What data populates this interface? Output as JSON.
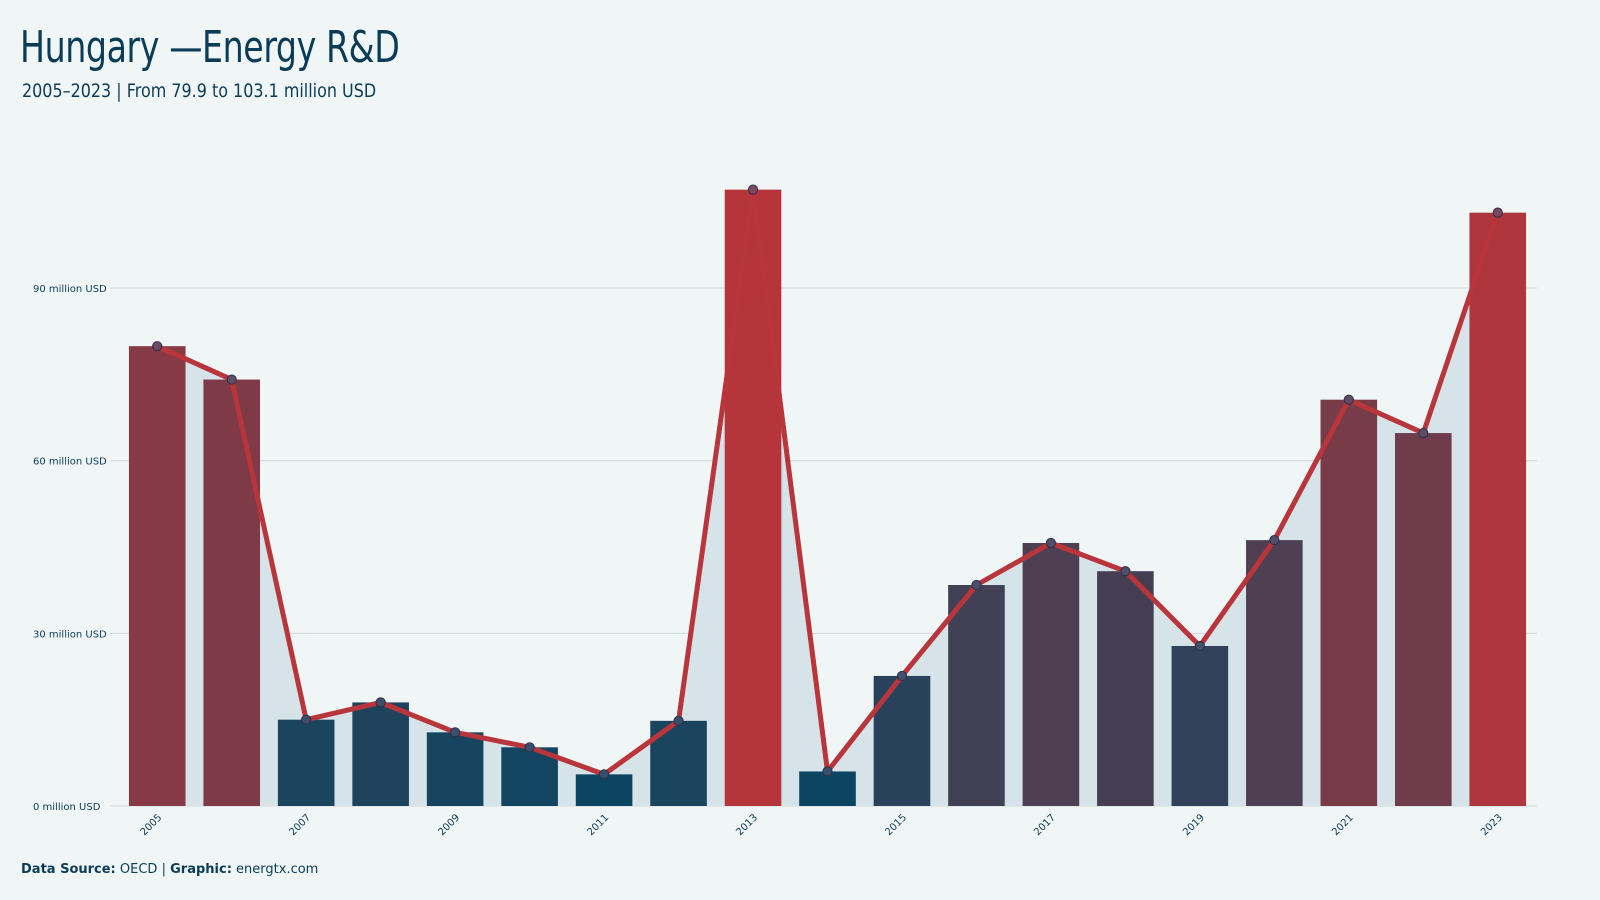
{
  "header": {
    "title": "Hungary —Energy R&D",
    "subtitle": "2005–2023 | From 79.9 to 103.1 million USD"
  },
  "footer": {
    "source_label": "Data Source:",
    "source_value": "OECD",
    "separator": "|",
    "graphic_label": "Graphic:",
    "graphic_value": "energtx.com"
  },
  "colors": {
    "background": "#f0f6f6",
    "area_fill": "#d6e4e9",
    "line": "#b8353b",
    "low": "#0b4562",
    "high": "#b5353a",
    "grid": "#cfd8dc",
    "text": "#0b3c57"
  },
  "chart_data": {
    "type": "bar",
    "title": "Hungary —Energy R&D",
    "subtitle": "2005–2023 | From 79.9 to 103.1 million USD",
    "xlabel": "",
    "ylabel": "",
    "unit": "million USD",
    "categories": [
      "2005",
      "2006",
      "2007",
      "2008",
      "2009",
      "2010",
      "2011",
      "2012",
      "2013",
      "2014",
      "2015",
      "2016",
      "2017",
      "2018",
      "2019",
      "2020",
      "2021",
      "2022",
      "2023"
    ],
    "tick_labels_x": [
      "2005",
      "2007",
      "2009",
      "2011",
      "2013",
      "2015",
      "2017",
      "2019",
      "2021",
      "2023"
    ],
    "values": [
      79.9,
      74.1,
      15.0,
      18.0,
      12.8,
      10.2,
      5.5,
      14.8,
      107.1,
      6.0,
      22.6,
      38.4,
      45.7,
      40.8,
      27.8,
      46.2,
      70.6,
      64.8,
      103.1
    ],
    "y_ticks": [
      {
        "value": 0,
        "label": "0 million USD"
      },
      {
        "value": 30,
        "label": "30 million USD"
      },
      {
        "value": 60,
        "label": "60 million USD"
      },
      {
        "value": 90,
        "label": "90 million USD"
      }
    ],
    "ylim": [
      0,
      110
    ],
    "grid": true,
    "overlay": "line-with-markers-and-area"
  }
}
